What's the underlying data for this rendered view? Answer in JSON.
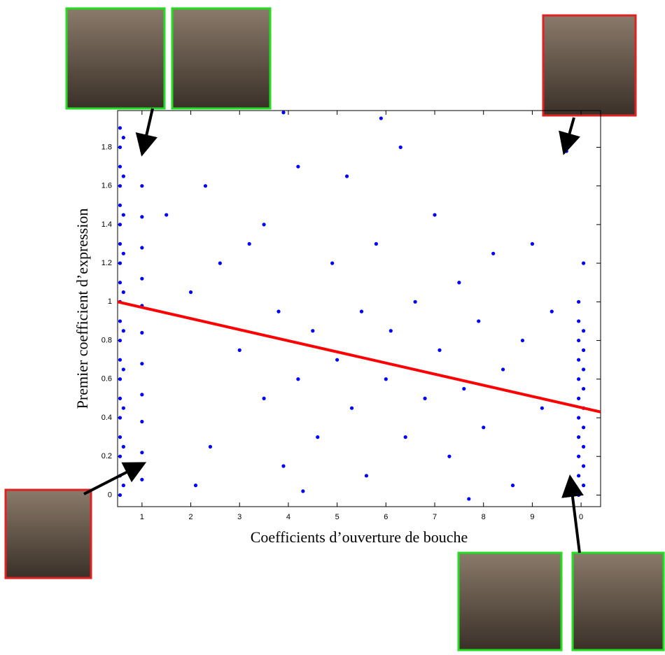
{
  "chart_data": {
    "type": "scatter",
    "xlabel": "Coefficients d’ouverture de bouche",
    "ylabel": "Premier coefficient   d’expression",
    "xlim": [
      0.5,
      10.4
    ],
    "ylim": [
      -0.06,
      1.99
    ],
    "xticks": [
      1,
      2,
      3,
      4,
      5,
      6,
      7,
      8,
      9,
      {
        "value": 10,
        "label": "0"
      }
    ],
    "yticks": [
      0,
      0.2,
      0.4,
      0.6,
      0.8,
      1,
      1.2,
      1.4,
      1.6,
      1.8
    ],
    "series": [
      {
        "mode": "markers",
        "color": "#0000ff",
        "x": [
          0.55,
          0.55,
          0.55,
          0.55,
          0.55,
          0.55,
          0.55,
          0.55,
          0.55,
          0.55,
          0.55,
          0.55,
          0.55,
          0.55,
          0.55,
          0.55,
          0.55,
          0.55,
          0.55,
          0.55,
          0.62,
          0.62,
          0.62,
          0.62,
          0.62,
          0.62,
          0.62,
          0.62,
          0.62,
          0.62,
          1.0,
          1.0,
          1.0,
          1.0,
          1.0,
          1.0,
          1.0,
          1.0,
          1.0,
          1.0,
          1.0,
          1.0,
          9.95,
          9.95,
          9.95,
          9.95,
          9.95,
          9.95,
          9.95,
          9.95,
          9.95,
          9.95,
          9.95,
          10.05,
          10.05,
          10.05,
          10.05,
          10.05,
          10.05,
          10.05,
          10.05,
          10.05,
          10.05,
          1.5,
          2.0,
          2.3,
          2.6,
          2.4,
          3.0,
          3.2,
          3.5,
          3.5,
          3.8,
          3.9,
          4.2,
          4.2,
          4.5,
          4.6,
          4.9,
          5.0,
          5.2,
          5.3,
          5.5,
          5.6,
          5.8,
          6.0,
          6.1,
          6.3,
          6.4,
          6.6,
          6.8,
          7.0,
          7.1,
          7.3,
          7.5,
          7.6,
          7.9,
          8.0,
          8.2,
          8.4,
          8.6,
          8.8,
          9.0,
          9.2,
          9.4,
          9.7,
          3.9,
          5.9,
          2.1,
          4.3,
          7.7
        ],
        "values": [
          0.0,
          0.1,
          0.2,
          0.3,
          0.4,
          0.5,
          0.6,
          0.7,
          0.8,
          0.9,
          1.0,
          1.1,
          1.2,
          1.3,
          1.4,
          1.5,
          1.6,
          1.7,
          1.8,
          1.9,
          0.05,
          0.25,
          0.45,
          0.65,
          0.85,
          1.05,
          1.25,
          1.45,
          1.65,
          1.85,
          0.08,
          0.22,
          0.38,
          0.52,
          0.68,
          0.84,
          0.98,
          1.12,
          1.28,
          1.44,
          1.6,
          1.78,
          0.0,
          0.1,
          0.2,
          0.3,
          0.4,
          0.5,
          0.6,
          0.7,
          0.8,
          0.9,
          1.0,
          0.05,
          0.15,
          0.25,
          0.35,
          0.45,
          0.55,
          0.65,
          0.75,
          0.85,
          1.2,
          1.45,
          1.05,
          1.6,
          1.2,
          0.25,
          0.75,
          1.3,
          1.4,
          0.5,
          0.95,
          0.15,
          1.7,
          0.6,
          0.85,
          0.3,
          1.2,
          0.7,
          1.65,
          0.45,
          0.95,
          0.1,
          1.3,
          0.6,
          0.85,
          1.8,
          0.3,
          1.0,
          0.5,
          1.45,
          0.75,
          0.2,
          1.1,
          0.55,
          0.9,
          0.35,
          1.25,
          0.65,
          0.05,
          0.8,
          1.3,
          0.45,
          0.95,
          1.78,
          1.98,
          1.95,
          0.05,
          0.02,
          -0.02
        ]
      },
      {
        "mode": "line",
        "color": "#ff0000",
        "x": [
          0.5,
          10.4
        ],
        "values": [
          1.0,
          0.43
        ]
      }
    ]
  }
}
